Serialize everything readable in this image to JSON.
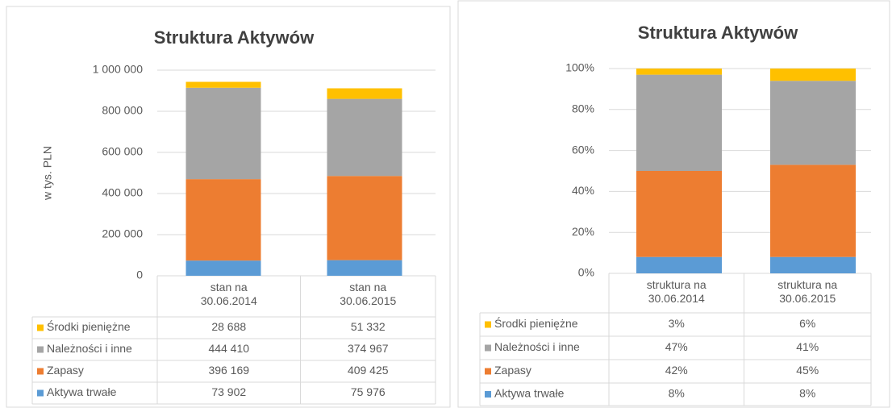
{
  "chart_data": [
    {
      "type": "stacked_bar",
      "title": "Struktura Aktywów",
      "y_label": "w tys. PLN",
      "categories": [
        "stan na 30.06.2014",
        "stan na 30.06.2015"
      ],
      "series": [
        {
          "name": "Aktywa trwałe",
          "color": "#5b9bd5",
          "values": [
            73902,
            75976
          ],
          "value_labels": [
            "73 902",
            "75 976"
          ]
        },
        {
          "name": "Zapasy",
          "color": "#ed7d31",
          "values": [
            396169,
            409425
          ],
          "value_labels": [
            "396 169",
            "409 425"
          ]
        },
        {
          "name": "Należności i inne",
          "color": "#a5a5a5",
          "values": [
            444410,
            374967
          ],
          "value_labels": [
            "444 410",
            "374 967"
          ]
        },
        {
          "name": "Środki pieniężne",
          "color": "#ffc000",
          "values": [
            28688,
            51332
          ],
          "value_labels": [
            "28 688",
            "51 332"
          ]
        }
      ],
      "ylim": [
        0,
        1000000
      ],
      "yticks": [
        0,
        {
          "value": 200000,
          "label": "200 000"
        },
        {
          "value": 400000,
          "label": "400 000"
        },
        {
          "value": 600000,
          "label": "600 000"
        },
        {
          "value": 800000,
          "label": "800 000"
        },
        {
          "value": 1000000,
          "label": "1 000 000"
        }
      ],
      "grid": true
    },
    {
      "type": "stacked_bar",
      "title": "Struktura Aktywów",
      "categories": [
        "struktura na 30.06.2014",
        "struktura na 30.06.2015"
      ],
      "series": [
        {
          "name": "Aktywa trwałe",
          "color": "#5b9bd5",
          "values": [
            8,
            8
          ],
          "value_labels": [
            "8%",
            "8%"
          ]
        },
        {
          "name": "Zapasy",
          "color": "#ed7d31",
          "values": [
            42,
            45
          ],
          "value_labels": [
            "42%",
            "45%"
          ]
        },
        {
          "name": "Należności i inne",
          "color": "#a5a5a5",
          "values": [
            47,
            41
          ],
          "value_labels": [
            "47%",
            "41%"
          ]
        },
        {
          "name": "Środki pieniężne",
          "color": "#ffc000",
          "values": [
            3,
            6
          ],
          "value_labels": [
            "3%",
            "6%"
          ]
        }
      ],
      "ylim": [
        0,
        100
      ],
      "yticks": [
        {
          "value": 0,
          "label": "0%"
        },
        {
          "value": 20,
          "label": "20%"
        },
        {
          "value": 40,
          "label": "40%"
        },
        {
          "value": 60,
          "label": "60%"
        },
        {
          "value": 80,
          "label": "80%"
        },
        {
          "value": 100,
          "label": "100%"
        }
      ],
      "grid": true
    }
  ]
}
